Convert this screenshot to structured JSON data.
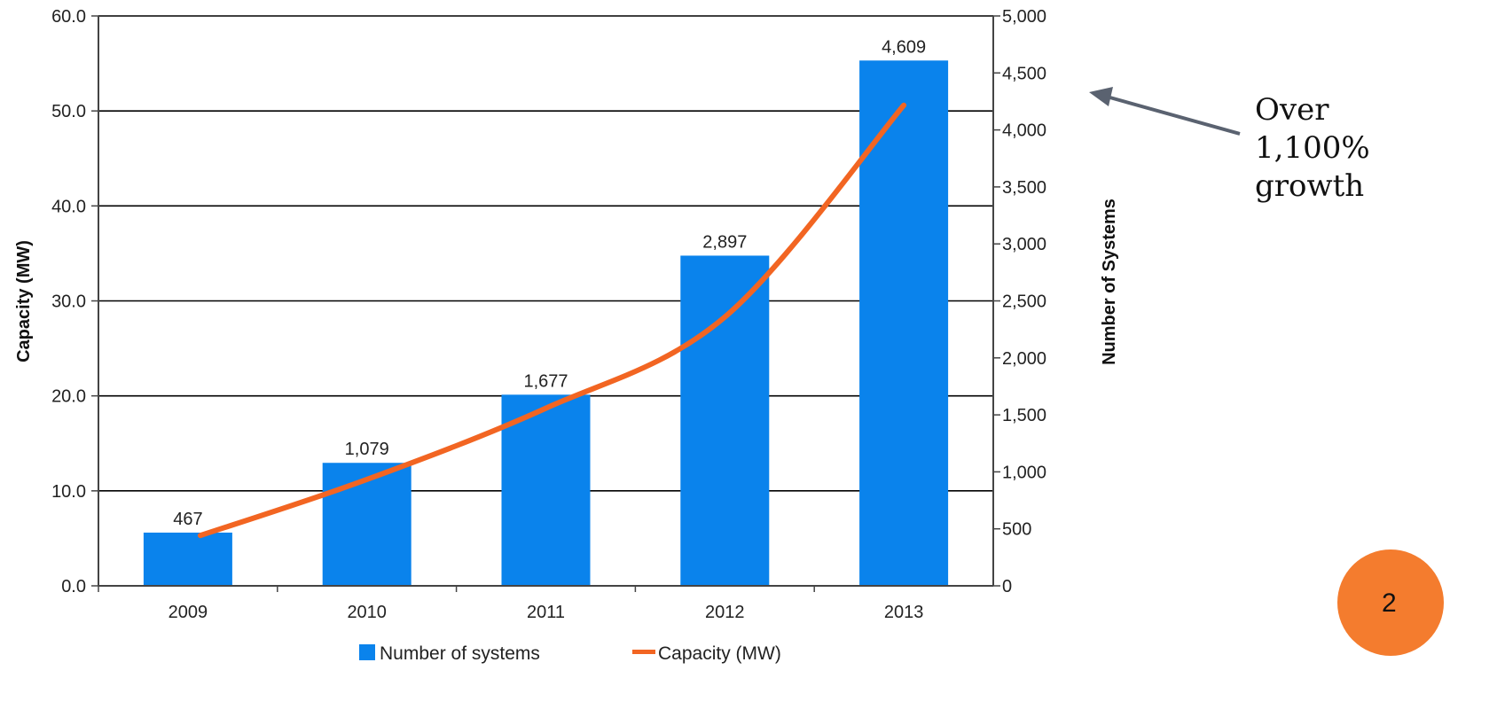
{
  "annotation": {
    "text": "Over\n1,100%\ngrowth"
  },
  "page_badge": {
    "number": "2"
  },
  "colors": {
    "bars": "#0a83ec",
    "line": "#f26522",
    "grid": "#000000",
    "arrow": "#5a6270",
    "badge": "#f47c2e"
  },
  "chart_data": {
    "type": "bar",
    "categories": [
      "2009",
      "2010",
      "2011",
      "2012",
      "2013"
    ],
    "series": [
      {
        "name": "Number of systems",
        "type": "bar",
        "axis": "right",
        "values": [
          467,
          1079,
          1677,
          2897,
          4609
        ],
        "labels": [
          "467",
          "1,079",
          "1,677",
          "2,897",
          "4,609"
        ]
      },
      {
        "name": "Capacity (MW)",
        "type": "line",
        "axis": "left",
        "values": [
          5.3,
          11.2,
          18.7,
          28.3,
          50.6
        ]
      }
    ],
    "ylabel_left": "Capacity (MW)",
    "ylabel_right": "Number of Systems",
    "ylim_left": [
      0,
      60
    ],
    "ylim_right": [
      0,
      5000
    ],
    "left_ticks": [
      "0.0",
      "10.0",
      "20.0",
      "30.0",
      "40.0",
      "50.0",
      "60.0"
    ],
    "right_ticks": [
      "0",
      "500",
      "1,000",
      "1,500",
      "2,000",
      "2,500",
      "3,000",
      "3,500",
      "4,000",
      "4,500",
      "5,000"
    ],
    "grid": true,
    "legend": {
      "position": "bottom",
      "items": [
        "Number of systems",
        "Capacity (MW)"
      ]
    }
  }
}
